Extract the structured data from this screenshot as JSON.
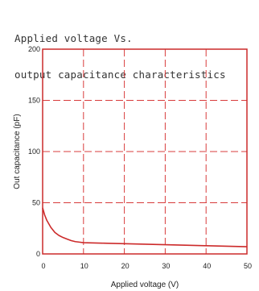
{
  "chart_data": {
    "type": "line",
    "title_lines": [
      "Applied voltage Vs.",
      "output capacitance characteristics"
    ],
    "xlabel": "Applied voltage (V)",
    "ylabel": "Out capacitance (pF)",
    "xlim": [
      0,
      50
    ],
    "ylim": [
      0,
      200
    ],
    "x_ticks": [
      "0",
      "10",
      "20",
      "30",
      "40",
      "50"
    ],
    "y_ticks": [
      "0",
      "50",
      "100",
      "150",
      "200"
    ],
    "grid": true,
    "colors": {
      "line": "#cc2a2a",
      "grid": "#d83c3c",
      "frame": "#cc2a2a"
    },
    "series": [
      {
        "x": [
          0,
          0.5,
          1,
          2,
          3,
          4,
          5,
          6,
          7,
          8,
          9,
          10,
          15,
          20,
          25,
          30,
          35,
          40,
          45,
          50
        ],
        "values": [
          45,
          38,
          33,
          26,
          21,
          18,
          16,
          14.5,
          13,
          12,
          11.5,
          11,
          10.5,
          10,
          9.5,
          9,
          8.5,
          8,
          7.5,
          7
        ]
      }
    ]
  }
}
